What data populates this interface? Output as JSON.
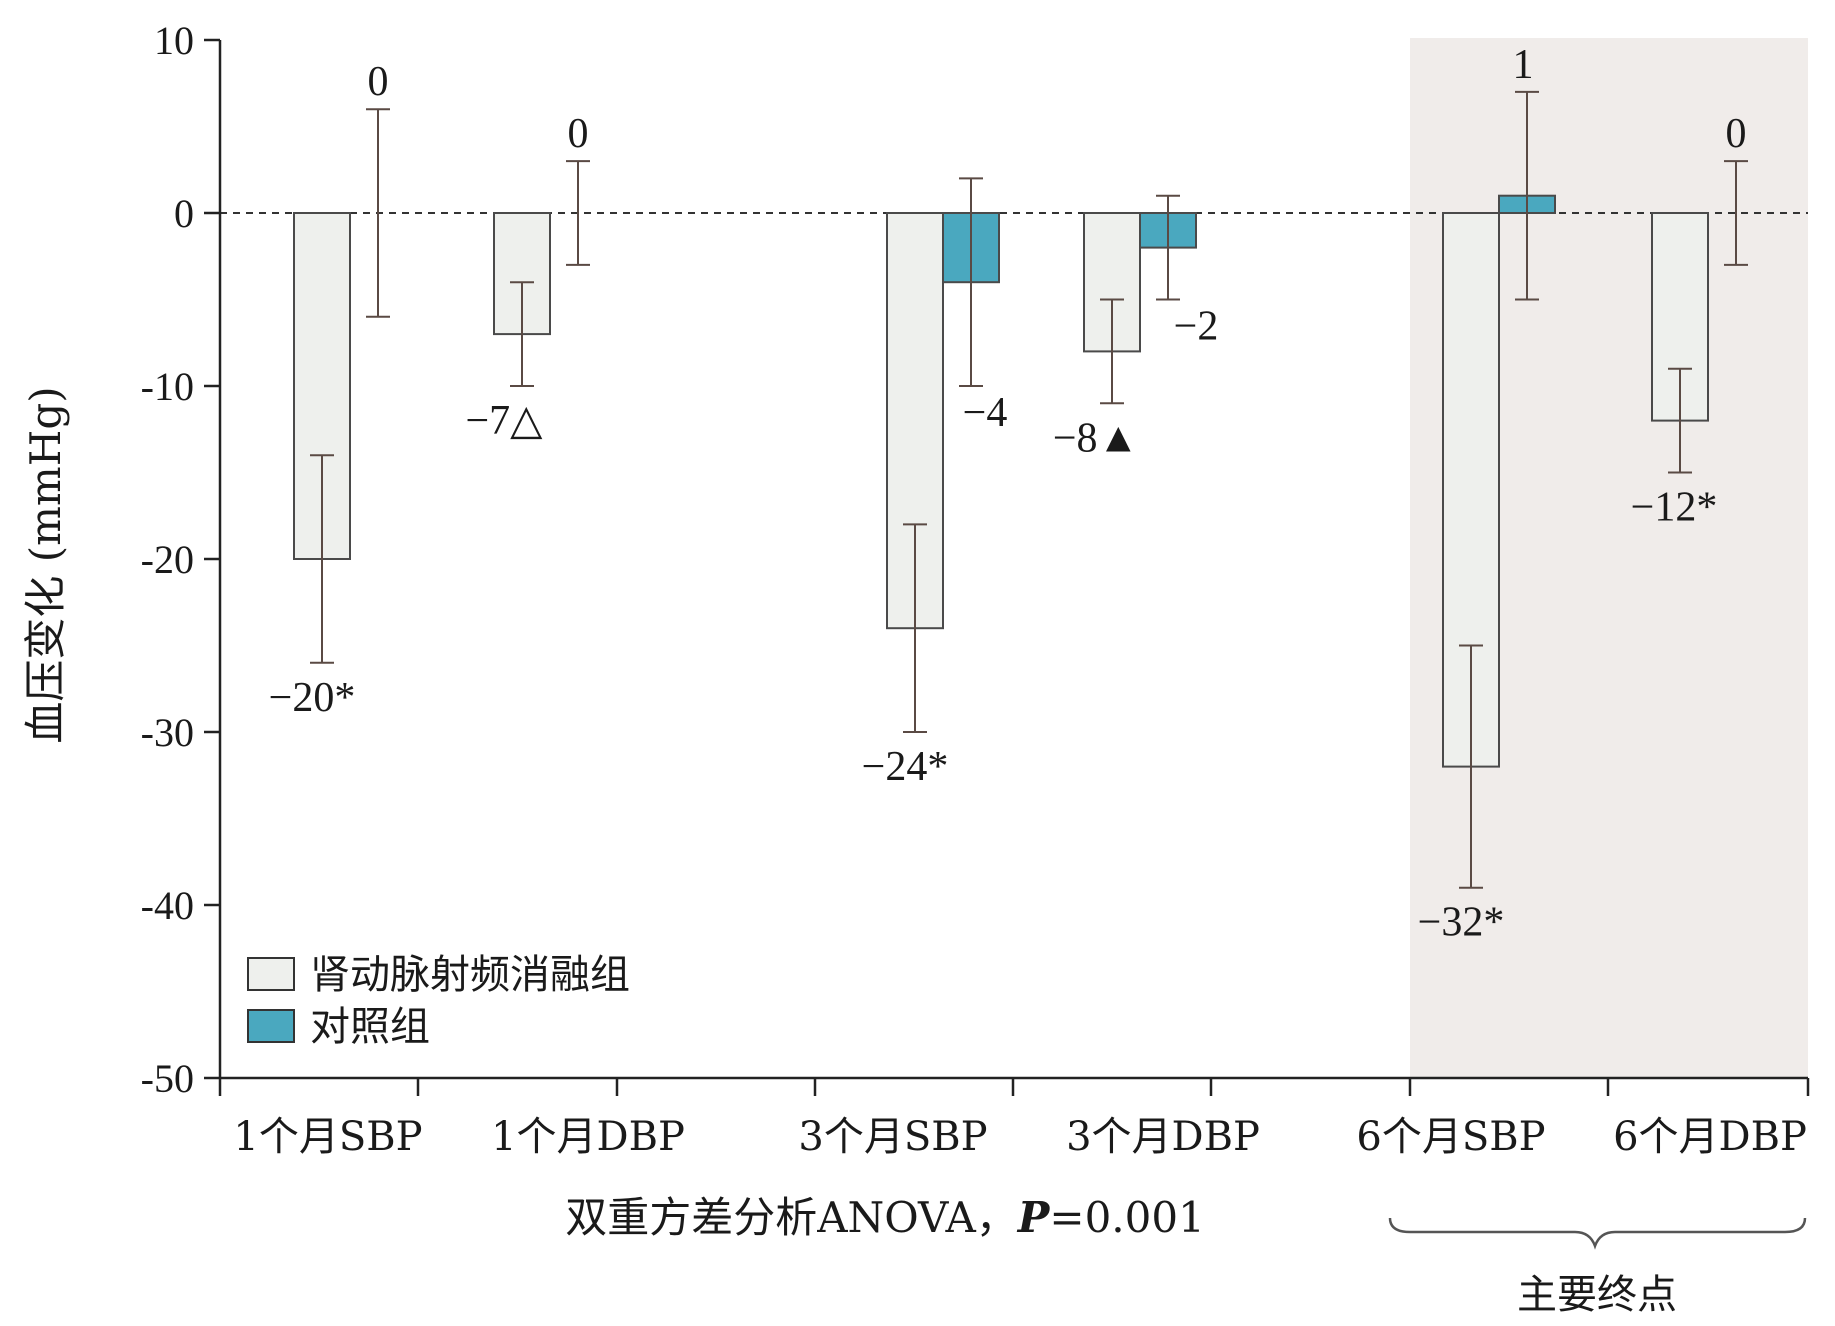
{
  "chart_data": {
    "type": "bar",
    "ylabel": "血压变化 (mmHg)",
    "xlabel": "双重方差分析ANOVA，P=0.001",
    "xlabel_parts": {
      "prefix": "双重方差分析ANOVA，",
      "p_symbol": "P",
      "p_value": "=0.001"
    },
    "ylim": [
      -50,
      10
    ],
    "yticks": [
      10,
      0,
      -10,
      -20,
      -30,
      -40,
      -50
    ],
    "ytick_labels": [
      "10",
      "0",
      "-10",
      "-20",
      "-30",
      "-40",
      "-50"
    ],
    "categories": [
      "1个月SBP",
      "1个月DBP",
      "3个月SBP",
      "3个月DBP",
      "6个月SBP",
      "6个月DBP"
    ],
    "series": [
      {
        "name": "肾动脉射频消融组",
        "color": "#eef0ed",
        "values": [
          -20,
          -7,
          -24,
          -8,
          -32,
          -12
        ],
        "error_low": [
          -26,
          -10,
          -30,
          -11,
          -39,
          -15
        ],
        "error_high": [
          -14,
          -4,
          -18,
          -5,
          -25,
          -9
        ],
        "labels": [
          "−20*",
          "−7△",
          "−24*",
          "−8▲",
          "−32*",
          "−12*"
        ]
      },
      {
        "name": "对照组",
        "color": "#4aa8bf",
        "values": [
          0,
          0,
          -4,
          -2,
          1,
          0
        ],
        "error_low": [
          -6,
          -3,
          -10,
          -5,
          -5,
          -3
        ],
        "error_high": [
          6,
          3,
          2,
          1,
          7,
          3
        ],
        "labels": [
          "0",
          "0",
          "−4",
          "−2",
          "1",
          "0"
        ]
      }
    ],
    "reference_line": 0,
    "highlight": {
      "categories": [
        "6个月SBP",
        "6个月DBP"
      ],
      "label": "主要终点",
      "color": "#f0ecea"
    },
    "legend_position": "bottom-left"
  }
}
